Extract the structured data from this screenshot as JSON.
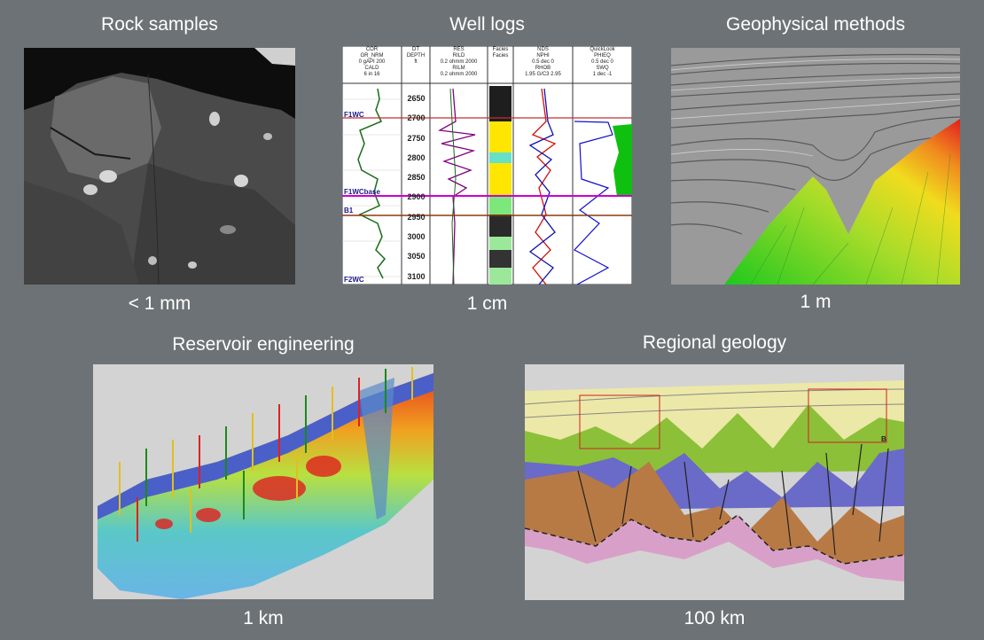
{
  "panels": {
    "rock": {
      "title": "Rock samples",
      "scale": "< 1 mm"
    },
    "well": {
      "title": "Well logs",
      "scale": "1 cm"
    },
    "geophys": {
      "title": "Geophysical methods",
      "scale": "1 m"
    },
    "reservoir": {
      "title": "Reservoir engineering",
      "scale": "1 km"
    },
    "regional": {
      "title": "Regional geology",
      "scale": "100 km"
    }
  },
  "well_log": {
    "headers": [
      "COR",
      "DT",
      "RES",
      "Facies",
      "NDS",
      "QuickLook"
    ],
    "subheaders": [
      "GR_NRM",
      "DEPTH",
      "RILD",
      "Facies",
      "NPHI",
      "PHIEQ"
    ],
    "units_row": [
      "0  gAPI  200",
      "ft",
      "0.2  ohmm  2000",
      "",
      "0.5  dec  0",
      "0.5  dec  0"
    ],
    "subheaders2": [
      "CALD",
      "",
      "RILM",
      "",
      "RHOB",
      "SWQ"
    ],
    "units_row2": [
      "6  in  16",
      "",
      "0.2  ohmm  2000",
      "",
      "1.95  G/C3  2.95",
      "1  dec  -1"
    ],
    "depths": [
      "2650",
      "2700",
      "2750",
      "2800",
      "2850",
      "2900",
      "2950",
      "3000",
      "3050",
      "3100"
    ],
    "markers": [
      "F1WC",
      "F1WCbase",
      "B1",
      "F2WC"
    ]
  },
  "regional_geology": {
    "box_label": "B"
  }
}
